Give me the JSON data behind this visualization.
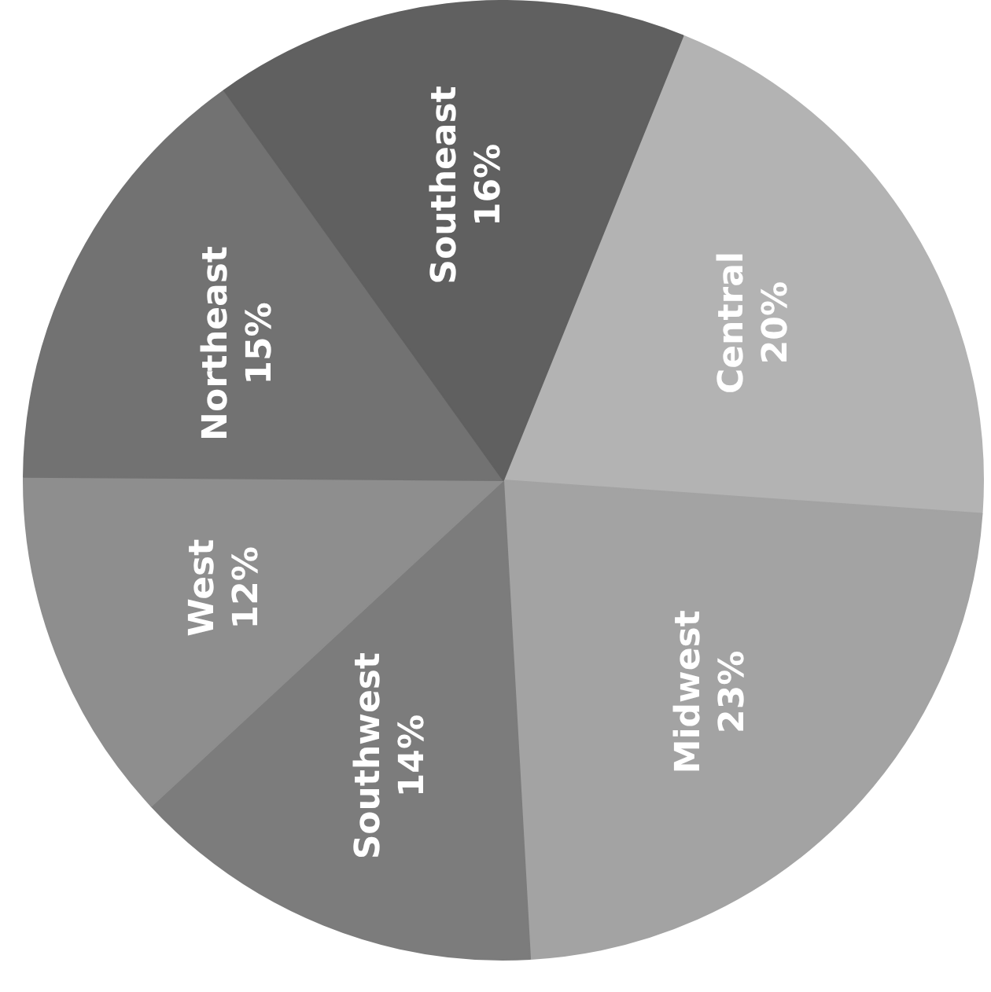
{
  "chart_data": {
    "type": "pie",
    "categories": [
      "Central",
      "Midwest",
      "Southwest",
      "West",
      "Northeast",
      "Southeast"
    ],
    "values": [
      20,
      23,
      14,
      12,
      15,
      16
    ],
    "value_labels": [
      "20%",
      "23%",
      "14%",
      "12%",
      "15%",
      "16%"
    ],
    "colors": [
      "#b3b3b3",
      "#a3a3a3",
      "#7c7c7c",
      "#8e8e8e",
      "#727272",
      "#606060"
    ],
    "legend": false
  }
}
